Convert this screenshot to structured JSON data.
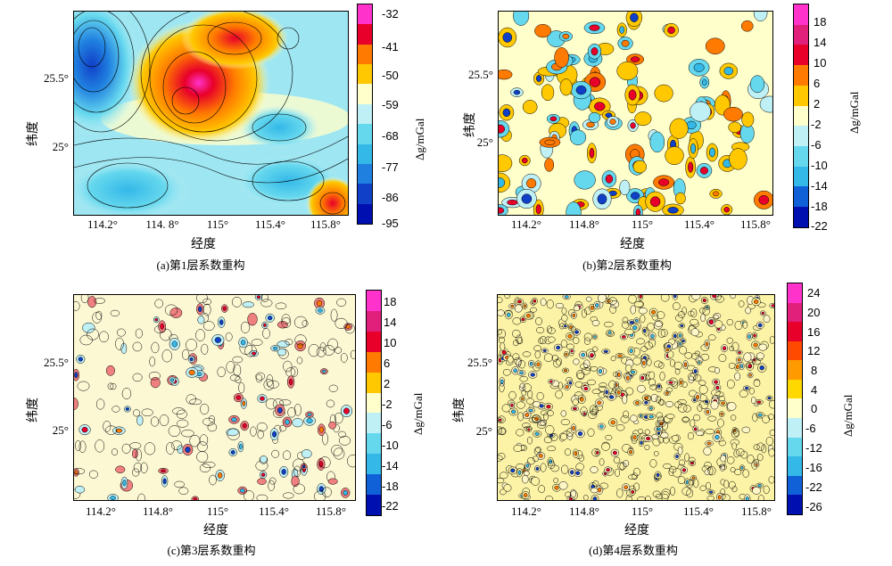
{
  "panels": [
    {
      "id": "a",
      "caption": "(a)第1层系数重构",
      "x_ticks": [
        "114.2°",
        "114. 8°",
        "115°",
        "115.4°",
        "115.8°"
      ],
      "y_ticks": [
        "25.5°",
        "25°"
      ],
      "xlabel": "经度",
      "ylabel": "纬度",
      "unit": "Δg/mGal",
      "colorbar_labels": [
        "-32",
        "-41",
        "-50",
        "-59",
        "-68",
        "-77",
        "-86",
        "-95"
      ],
      "colorbar_colors": [
        "#ff33cc",
        "#e8002a",
        "#ff7a00",
        "#ffc800",
        "#ffffcc",
        "#bff0f5",
        "#66d8ee",
        "#33b8e8",
        "#2080e0",
        "#1040c8",
        "#0010b0"
      ]
    },
    {
      "id": "b",
      "caption": "(b)第2层系数重构",
      "x_ticks": [
        "114.2°",
        "114.8°",
        "115°",
        "115.4°",
        "115.8°"
      ],
      "y_ticks": [
        "25.5°",
        "25°"
      ],
      "xlabel": "经度",
      "ylabel": "纬度",
      "unit": "Δg/mGal",
      "colorbar_labels": [
        "18",
        "14",
        "10",
        "6",
        "2",
        "-2",
        "-6",
        "-10",
        "-14",
        "-18",
        "-22"
      ],
      "colorbar_colors": [
        "#ff33cc",
        "#e0207a",
        "#e8002a",
        "#ff7a00",
        "#ffc800",
        "#ffffcc",
        "#bff0f5",
        "#66d8ee",
        "#33b8e8",
        "#1060d8",
        "#0010b0"
      ]
    },
    {
      "id": "c",
      "caption": "(c)第3层系数重构",
      "x_ticks": [
        "114.2°",
        "114.8°",
        "115°",
        "115.4°",
        "115.8°"
      ],
      "y_ticks": [
        "25.5°",
        "25°"
      ],
      "xlabel": "经度",
      "ylabel": "纬度",
      "unit": "Δg/mGal",
      "colorbar_labels": [
        "18",
        "14",
        "10",
        "6",
        "2",
        "-2",
        "-6",
        "-10",
        "-14",
        "-18",
        "-22"
      ],
      "colorbar_colors": [
        "#ff33cc",
        "#e0207a",
        "#e8002a",
        "#ff7a00",
        "#ffc800",
        "#ffffcc",
        "#bff0f5",
        "#66d8ee",
        "#33b8e8",
        "#1060d8",
        "#0010b0"
      ]
    },
    {
      "id": "d",
      "caption": "(d)第4层系数重构",
      "x_ticks": [
        "114.2°",
        "114.8°",
        "115°",
        "115.4°",
        "115.8°"
      ],
      "y_ticks": [
        "25.5°",
        "25°"
      ],
      "xlabel": "经度",
      "ylabel": "纬度",
      "unit": "Δg/mGal",
      "colorbar_labels": [
        "24",
        "20",
        "16",
        "12",
        "8",
        "4",
        "0",
        "-6",
        "-12",
        "-16",
        "-22",
        "-26"
      ],
      "colorbar_colors": [
        "#ff33cc",
        "#e0207a",
        "#e8002a",
        "#ff4a00",
        "#ff9a00",
        "#ffd800",
        "#ffffcc",
        "#bff0f5",
        "#66d8ee",
        "#33b8e8",
        "#1060d8",
        "#0010b0"
      ]
    }
  ]
}
